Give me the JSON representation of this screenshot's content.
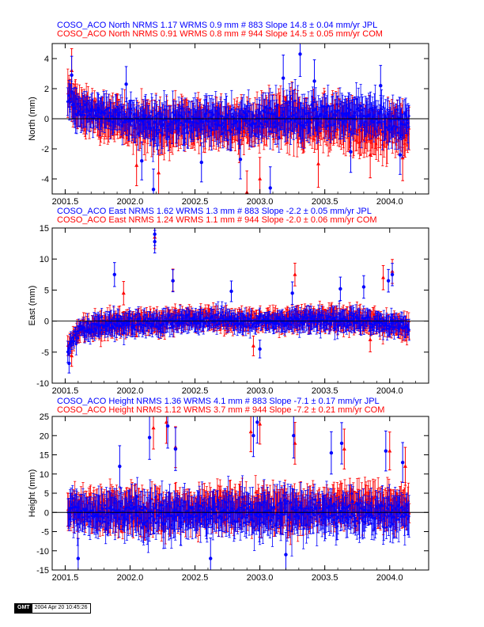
{
  "chart_data": [
    {
      "type": "scatter",
      "ylabel": "North (mm)",
      "xlim": [
        2001.4,
        2004.3
      ],
      "ylim": [
        -5,
        5
      ],
      "xticks": [
        2001.5,
        2002.0,
        2002.5,
        2003.0,
        2003.5,
        2004.0
      ],
      "xtick_labels": [
        "2001.5",
        "2002.0",
        "2002.5",
        "2003.0",
        "2003.5",
        "2004.0"
      ],
      "yticks": [
        -4,
        -2,
        0,
        2,
        4
      ],
      "ytick_labels": [
        "-4",
        "-2",
        "0",
        "2",
        "4"
      ],
      "grid": false,
      "legend": [
        {
          "text": "COSO_ACO North NRMS 1.17 WRMS  0.9 mm # 883 Slope   14.8 ±  0.04 mm/yr JPL",
          "color": "#0000ff"
        },
        {
          "text": "COSO_ACO North NRMS 0.91 WRMS  0.8 mm # 944 Slope   14.5 ±  0.05 mm/yr COM",
          "color": "#ff0000"
        }
      ],
      "series": [
        {
          "name": "JPL",
          "color": "#0000ff",
          "marker": "circle",
          "n": 883,
          "nrms": 1.17,
          "wrms_mm": 0.9,
          "slope_mm_yr": 14.8,
          "slope_sigma": 0.04,
          "envelope": {
            "x": [
              2001.52,
              2001.6,
              2001.75,
              2001.9,
              2002.0,
              2002.25,
              2002.5,
              2002.75,
              2003.0,
              2003.2,
              2003.4,
              2003.6,
              2003.8,
              2004.0,
              2004.15
            ],
            "center": [
              1.4,
              0.8,
              0.3,
              0.1,
              0.0,
              -0.3,
              0.0,
              -0.2,
              -0.1,
              0.3,
              0.2,
              0.3,
              0.1,
              -0.1,
              -0.3
            ],
            "spread": [
              1.0,
              0.9,
              0.9,
              0.9,
              0.9,
              1.1,
              1.0,
              1.0,
              1.0,
              1.2,
              1.1,
              1.0,
              1.1,
              1.0,
              1.0
            ]
          },
          "outliers": [
            [
              2001.55,
              2.9
            ],
            [
              2001.97,
              2.3
            ],
            [
              2002.09,
              -2.8
            ],
            [
              2002.18,
              -4.7
            ],
            [
              2002.55,
              -2.9
            ],
            [
              2002.85,
              -2.7
            ],
            [
              2003.08,
              -4.6
            ],
            [
              2003.18,
              2.7
            ],
            [
              2003.31,
              4.3
            ],
            [
              2003.42,
              2.5
            ],
            [
              2003.7,
              -2.2
            ],
            [
              2003.93,
              2.2
            ],
            [
              2004.08,
              -2.4
            ]
          ]
        },
        {
          "name": "COM",
          "color": "#ff0000",
          "marker": "triangle",
          "n": 944,
          "nrms": 0.91,
          "wrms_mm": 0.8,
          "slope_mm_yr": 14.5,
          "slope_sigma": 0.05,
          "envelope": {
            "x": [
              2001.52,
              2001.6,
              2001.75,
              2001.9,
              2002.0,
              2002.25,
              2002.5,
              2002.75,
              2003.0,
              2003.2,
              2003.4,
              2003.6,
              2003.8,
              2004.0,
              2004.15
            ],
            "center": [
              1.4,
              0.7,
              0.2,
              -0.1,
              -0.3,
              -0.5,
              -0.2,
              -0.5,
              -0.4,
              0.0,
              -0.4,
              -0.2,
              -0.8,
              -0.6,
              -0.9
            ],
            "spread": [
              1.2,
              1.0,
              1.0,
              1.1,
              1.0,
              1.2,
              1.1,
              1.1,
              1.1,
              1.3,
              1.2,
              1.2,
              1.2,
              1.1,
              1.2
            ]
          },
          "outliers": [
            [
              2001.55,
              3.2
            ],
            [
              2002.05,
              -3.1
            ],
            [
              2002.22,
              -3.6
            ],
            [
              2002.9,
              -4.9
            ],
            [
              2003.0,
              -4.0
            ],
            [
              2003.45,
              -3.0
            ],
            [
              2003.85,
              -2.4
            ],
            [
              2004.1,
              -2.6
            ]
          ]
        }
      ]
    },
    {
      "type": "scatter",
      "ylabel": "East (mm)",
      "xlim": [
        2001.4,
        2004.3
      ],
      "ylim": [
        -10,
        15
      ],
      "xticks": [
        2001.5,
        2002.0,
        2002.5,
        2003.0,
        2003.5,
        2004.0
      ],
      "xtick_labels": [
        "2001.5",
        "2002.0",
        "2002.5",
        "2003.0",
        "2003.5",
        "2004.0"
      ],
      "yticks": [
        -10,
        -5,
        0,
        5,
        10,
        15
      ],
      "ytick_labels": [
        "-10",
        "-5",
        "0",
        "5",
        "10",
        "15"
      ],
      "grid": false,
      "legend": [
        {
          "text": "COSO_ACO East NRMS 1.62 WRMS  1.3 mm # 883 Slope   -2.2 ±  0.05 mm/yr JPL",
          "color": "#0000ff"
        },
        {
          "text": "COSO_ACO East NRMS 1.24 WRMS  1.1 mm # 944 Slope   -2.0 ±  0.06 mm/yr COM",
          "color": "#ff0000"
        }
      ],
      "series": [
        {
          "name": "JPL",
          "color": "#0000ff",
          "marker": "circle",
          "n": 883,
          "nrms": 1.62,
          "wrms_mm": 1.3,
          "slope_mm_yr": -2.2,
          "slope_sigma": 0.05,
          "envelope": {
            "x": [
              2001.52,
              2001.56,
              2001.62,
              2001.75,
              2001.9,
              2002.0,
              2002.25,
              2002.5,
              2002.75,
              2003.0,
              2003.25,
              2003.5,
              2003.75,
              2004.0,
              2004.15
            ],
            "center": [
              -4.8,
              -3.0,
              -1.5,
              -0.8,
              -0.5,
              -0.5,
              -0.3,
              0.2,
              0.1,
              -0.1,
              0.1,
              0.2,
              0.0,
              -0.4,
              -0.8
            ],
            "spread": [
              1.2,
              1.2,
              1.2,
              1.4,
              1.5,
              1.4,
              1.4,
              1.3,
              1.3,
              1.1,
              1.4,
              1.5,
              1.4,
              1.4,
              1.3
            ]
          },
          "outliers": [
            [
              2001.53,
              -6.8
            ],
            [
              2001.88,
              7.5
            ],
            [
              2002.19,
              12.8
            ],
            [
              2002.19,
              14.0
            ],
            [
              2002.33,
              6.5
            ],
            [
              2002.78,
              4.8
            ],
            [
              2003.0,
              -4.5
            ],
            [
              2003.25,
              4.5
            ],
            [
              2003.62,
              5.2
            ],
            [
              2003.8,
              5.5
            ],
            [
              2003.99,
              6.5
            ],
            [
              2004.02,
              7.5
            ]
          ]
        },
        {
          "name": "COM",
          "color": "#ff0000",
          "marker": "triangle",
          "n": 944,
          "nrms": 1.24,
          "wrms_mm": 1.1,
          "slope_mm_yr": -2.0,
          "slope_sigma": 0.06,
          "envelope": {
            "x": [
              2001.52,
              2001.56,
              2001.62,
              2001.75,
              2001.9,
              2002.0,
              2002.25,
              2002.5,
              2002.75,
              2003.0,
              2003.25,
              2003.5,
              2003.75,
              2004.0,
              2004.15
            ],
            "center": [
              -4.5,
              -2.8,
              -1.3,
              -0.6,
              -0.3,
              -0.2,
              0.1,
              0.5,
              0.3,
              0.1,
              0.3,
              0.5,
              0.2,
              -0.6,
              -1.0
            ],
            "spread": [
              1.3,
              1.3,
              1.3,
              1.5,
              1.5,
              1.4,
              1.4,
              1.3,
              1.3,
              1.2,
              1.4,
              1.5,
              1.5,
              1.5,
              1.4
            ]
          },
          "outliers": [
            [
              2001.55,
              -5.6
            ],
            [
              2001.95,
              4.5
            ],
            [
              2002.19,
              13.5
            ],
            [
              2002.33,
              6.6
            ],
            [
              2002.95,
              -4.0
            ],
            [
              2003.27,
              7.5
            ],
            [
              2003.95,
              7.0
            ],
            [
              2004.02,
              8.0
            ],
            [
              2003.85,
              -3.0
            ]
          ]
        }
      ]
    },
    {
      "type": "scatter",
      "ylabel": "Height (mm)",
      "xlim": [
        2001.4,
        2004.3
      ],
      "ylim": [
        -15,
        25
      ],
      "xticks": [
        2001.5,
        2002.0,
        2002.5,
        2003.0,
        2003.5,
        2004.0
      ],
      "xtick_labels": [
        "2001.5",
        "2002.0",
        "2002.5",
        "2003.0",
        "2003.5",
        "2004.0"
      ],
      "yticks": [
        -15,
        -10,
        -5,
        0,
        5,
        10,
        15,
        20,
        25
      ],
      "ytick_labels": [
        "-15",
        "-10",
        "-5",
        "0",
        "5",
        "10",
        "15",
        "20",
        "25"
      ],
      "grid": false,
      "legend": [
        {
          "text": "COSO_ACO Height NRMS 1.36 WRMS  4.1 mm # 883 Slope   -7.1 ±  0.17 mm/yr JPL",
          "color": "#0000ff"
        },
        {
          "text": "COSO_ACO Height NRMS 1.12 WRMS  3.7 mm # 944 Slope   -7.2 ±  0.21 mm/yr COM",
          "color": "#ff0000"
        }
      ],
      "series": [
        {
          "name": "JPL",
          "color": "#0000ff",
          "marker": "circle",
          "n": 883,
          "nrms": 1.36,
          "wrms_mm": 4.1,
          "slope_mm_yr": -7.1,
          "slope_sigma": 0.17,
          "envelope": {
            "x": [
              2001.52,
              2001.75,
              2002.0,
              2002.25,
              2002.5,
              2002.75,
              2003.0,
              2003.25,
              2003.5,
              2003.75,
              2004.0,
              2004.15
            ],
            "center": [
              0.5,
              0.0,
              0.0,
              -0.5,
              -0.2,
              0.0,
              -0.5,
              0.0,
              -0.5,
              -0.5,
              -0.5,
              -0.5
            ],
            "spread": [
              4.0,
              4.0,
              4.2,
              4.5,
              4.0,
              4.2,
              4.2,
              4.5,
              4.3,
              4.0,
              4.0,
              4.0
            ]
          },
          "outliers": [
            [
              2001.6,
              -12.0
            ],
            [
              2001.92,
              12.0
            ],
            [
              2002.15,
              19.5
            ],
            [
              2002.29,
              22.5
            ],
            [
              2002.35,
              16.5
            ],
            [
              2002.62,
              -12.0
            ],
            [
              2002.95,
              20.0
            ],
            [
              2002.98,
              23.5
            ],
            [
              2003.26,
              20.0
            ],
            [
              2003.55,
              15.5
            ],
            [
              2003.63,
              18.0
            ],
            [
              2003.97,
              16.0
            ],
            [
              2004.1,
              13.0
            ],
            [
              2003.2,
              -11.0
            ]
          ]
        },
        {
          "name": "COM",
          "color": "#ff0000",
          "marker": "triangle",
          "n": 944,
          "nrms": 1.12,
          "wrms_mm": 3.7,
          "slope_mm_yr": -7.2,
          "slope_sigma": 0.21,
          "envelope": {
            "x": [
              2001.52,
              2001.75,
              2002.0,
              2002.25,
              2002.5,
              2002.75,
              2003.0,
              2003.25,
              2003.5,
              2003.75,
              2004.0,
              2004.15
            ],
            "center": [
              1.0,
              1.0,
              1.0,
              0.5,
              1.0,
              1.0,
              0.5,
              1.0,
              1.0,
              2.0,
              1.5,
              1.0
            ],
            "spread": [
              3.8,
              3.8,
              4.0,
              4.3,
              3.8,
              4.0,
              4.0,
              4.2,
              4.0,
              4.0,
              3.8,
              3.8
            ]
          },
          "outliers": [
            [
              2002.18,
              22.0
            ],
            [
              2002.28,
              23.5
            ],
            [
              2002.35,
              17.0
            ],
            [
              2002.93,
              21.0
            ],
            [
              2003.0,
              23.0
            ],
            [
              2003.27,
              18.0
            ],
            [
              2003.65,
              16.5
            ],
            [
              2004.0,
              16.0
            ],
            [
              2004.12,
              12.0
            ]
          ]
        }
      ]
    }
  ],
  "stamp": {
    "logo": "GMT",
    "timestamp": "2004 Apr 20 10:45:26"
  }
}
